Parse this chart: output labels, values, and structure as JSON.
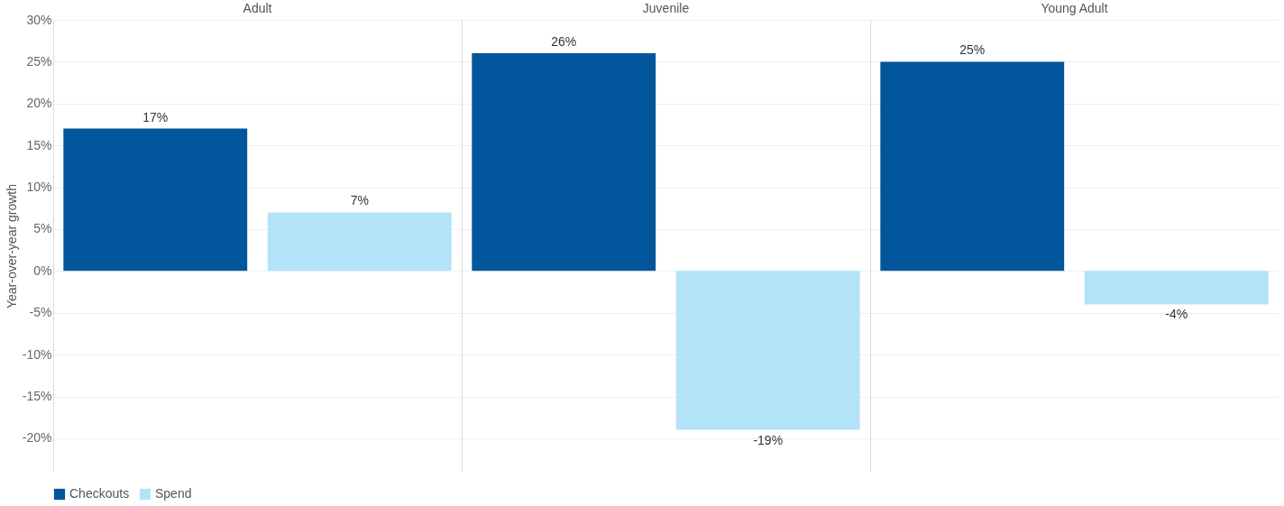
{
  "chart_data": {
    "type": "bar",
    "ylabel": "Year-over-year growth",
    "categories": [
      "Adult",
      "Juvenile",
      "Young Adult"
    ],
    "series": [
      {
        "name": "Checkouts",
        "color": "#02569b",
        "values": [
          17,
          26,
          25
        ],
        "value_labels": [
          "17%",
          "26%",
          "25%"
        ]
      },
      {
        "name": "Spend",
        "color": "#b3e3f9",
        "values": [
          7,
          -19,
          -4
        ],
        "value_labels": [
          "7%",
          "-19%",
          "-4%"
        ]
      }
    ],
    "ylim": [
      -24,
      30
    ],
    "yticks": [
      {
        "value": -20,
        "label": "-20%"
      },
      {
        "value": -15,
        "label": "-15%"
      },
      {
        "value": -10,
        "label": "-10%"
      },
      {
        "value": -5,
        "label": "-5%"
      },
      {
        "value": 0,
        "label": "0%"
      },
      {
        "value": 5,
        "label": "5%"
      },
      {
        "value": 10,
        "label": "10%"
      },
      {
        "value": 15,
        "label": "15%"
      },
      {
        "value": 20,
        "label": "20%"
      },
      {
        "value": 25,
        "label": "25%"
      },
      {
        "value": 30,
        "label": "30%"
      }
    ],
    "grid": "y",
    "legend": "bottom"
  }
}
